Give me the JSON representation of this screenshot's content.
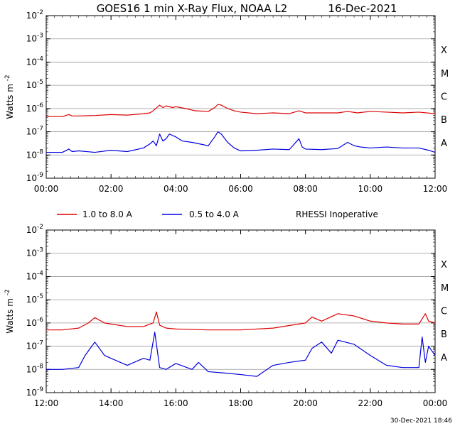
{
  "title": "GOES16 1 min X-Ray Flux, NOAA L2",
  "date": "16-Dec-2021",
  "footer_timestamp": "30-Dec-2021 18:46",
  "legend": {
    "entries": [
      {
        "label": "1.0 to 8.0 A",
        "color": "#dd0000"
      },
      {
        "label": "0.5 to 4.0 A",
        "color": "#0000dd"
      }
    ],
    "note": "RHESSI Inoperative"
  },
  "chart_data": [
    {
      "type": "line",
      "ylabel": "Watts m",
      "ylabel_exponent": "-2",
      "yscale": "log",
      "ylim_exponents": [
        -9,
        -2
      ],
      "y_tick_base": "10",
      "y_tick_exponents": [
        "-9",
        "-8",
        "-7",
        "-6",
        "-5",
        "-4",
        "-3",
        "-2"
      ],
      "flare_class_labels": [
        "A",
        "B",
        "C",
        "M",
        "X"
      ],
      "grid": true,
      "xlim_hours": [
        0,
        12
      ],
      "x_ticks": [
        "00:00",
        "02:00",
        "04:00",
        "06:00",
        "08:00",
        "10:00",
        "12:00"
      ],
      "series": [
        {
          "color": "#dd0000",
          "x_hours": [
            0,
            0.5,
            0.7,
            0.8,
            1,
            1.5,
            2,
            2.5,
            3,
            3.2,
            3.3,
            3.5,
            3.6,
            3.7,
            3.9,
            4,
            4.3,
            4.6,
            5,
            5.2,
            5.3,
            5.4,
            5.6,
            5.8,
            6,
            6.5,
            7,
            7.5,
            7.8,
            8,
            8.5,
            9,
            9.3,
            9.6,
            10,
            10.5,
            11,
            11.5,
            12
          ],
          "y": [
            4.5e-07,
            4.5e-07,
            5.5e-07,
            4.8e-07,
            4.8e-07,
            5e-07,
            5.5e-07,
            5.2e-07,
            6e-07,
            6.5e-07,
            8e-07,
            1.4e-06,
            1.1e-06,
            1.3e-06,
            1.1e-06,
            1.2e-06,
            1e-06,
            8e-07,
            7.5e-07,
            1.1e-06,
            1.5e-06,
            1.4e-06,
            1e-06,
            8e-07,
            7e-07,
            6e-07,
            6.5e-07,
            6e-07,
            8e-07,
            6.5e-07,
            6.5e-07,
            6.5e-07,
            7.5e-07,
            6.5e-07,
            7.5e-07,
            7e-07,
            6.5e-07,
            7e-07,
            6e-07
          ]
        },
        {
          "color": "#0000dd",
          "x_hours": [
            0,
            0.5,
            0.7,
            0.8,
            1,
            1.5,
            2,
            2.5,
            3,
            3.2,
            3.3,
            3.4,
            3.5,
            3.6,
            3.7,
            3.8,
            4,
            4.2,
            4.5,
            5,
            5.2,
            5.3,
            5.4,
            5.6,
            5.8,
            6,
            6.5,
            7,
            7.5,
            7.8,
            7.9,
            8,
            8.5,
            9,
            9.3,
            9.5,
            9.7,
            10,
            10.5,
            11,
            11.5,
            11.8,
            12
          ],
          "y": [
            1.3e-08,
            1.3e-08,
            1.8e-08,
            1.4e-08,
            1.5e-08,
            1.3e-08,
            1.6e-08,
            1.4e-08,
            2e-08,
            3e-08,
            4e-08,
            2.5e-08,
            8e-08,
            4e-08,
            5e-08,
            8e-08,
            6e-08,
            4e-08,
            3.5e-08,
            2.5e-08,
            6e-08,
            1e-07,
            8e-08,
            3.5e-08,
            2e-08,
            1.5e-08,
            1.6e-08,
            1.8e-08,
            1.7e-08,
            5e-08,
            2.2e-08,
            1.8e-08,
            1.7e-08,
            1.9e-08,
            3.5e-08,
            2.5e-08,
            2.2e-08,
            2e-08,
            2.2e-08,
            2e-08,
            2e-08,
            1.6e-08,
            1.3e-08
          ]
        }
      ]
    },
    {
      "type": "line",
      "ylabel": "Watts m",
      "ylabel_exponent": "-2",
      "yscale": "log",
      "ylim_exponents": [
        -9,
        -2
      ],
      "y_tick_base": "10",
      "y_tick_exponents": [
        "-9",
        "-8",
        "-7",
        "-6",
        "-5",
        "-4",
        "-3",
        "-2"
      ],
      "flare_class_labels": [
        "A",
        "B",
        "C",
        "M",
        "X"
      ],
      "grid": true,
      "xlim_hours": [
        12,
        24
      ],
      "x_ticks": [
        "12:00",
        "14:00",
        "16:00",
        "18:00",
        "20:00",
        "22:00",
        "00:00"
      ],
      "series": [
        {
          "color": "#dd0000",
          "x_hours": [
            12,
            12.5,
            13,
            13.3,
            13.5,
            13.8,
            14,
            14.5,
            15,
            15.3,
            15.4,
            15.5,
            15.7,
            16,
            17,
            18,
            19,
            20,
            20.2,
            20.5,
            21,
            21.5,
            22,
            22.5,
            23,
            23.5,
            23.7,
            23.8,
            24
          ],
          "y": [
            5e-07,
            5e-07,
            6e-07,
            1e-06,
            1.7e-06,
            1e-06,
            9e-07,
            7e-07,
            7e-07,
            1e-06,
            3e-06,
            8e-07,
            6e-07,
            5.5e-07,
            5e-07,
            5e-07,
            6e-07,
            1e-06,
            1.8e-06,
            1.2e-06,
            2.5e-06,
            2e-06,
            1.2e-06,
            1e-06,
            9e-07,
            9e-07,
            2.5e-06,
            1.2e-06,
            1e-06
          ]
        },
        {
          "color": "#0000dd",
          "x_hours": [
            12,
            12.5,
            13,
            13.2,
            13.5,
            13.8,
            14,
            14.5,
            15,
            15.2,
            15.35,
            15.5,
            15.7,
            16,
            16.5,
            16.7,
            17,
            17.5,
            18,
            18.5,
            19,
            19.5,
            20,
            20.2,
            20.5,
            20.8,
            21,
            21.5,
            22,
            22.5,
            23,
            23.5,
            23.6,
            23.7,
            23.8,
            24
          ],
          "y": [
            1e-08,
            1e-08,
            1.2e-08,
            4e-08,
            1.5e-07,
            4e-08,
            3e-08,
            1.5e-08,
            3e-08,
            2.5e-08,
            4e-07,
            1.2e-08,
            1e-08,
            1.8e-08,
            1e-08,
            2e-08,
            8e-09,
            7e-09,
            6e-09,
            5e-09,
            1.5e-08,
            2e-08,
            2.5e-08,
            8e-08,
            1.5e-07,
            5e-08,
            1.8e-07,
            1.2e-07,
            4e-08,
            1.5e-08,
            1.2e-08,
            1.2e-08,
            2.5e-07,
            2e-08,
            1e-07,
            4e-08
          ]
        }
      ]
    }
  ]
}
